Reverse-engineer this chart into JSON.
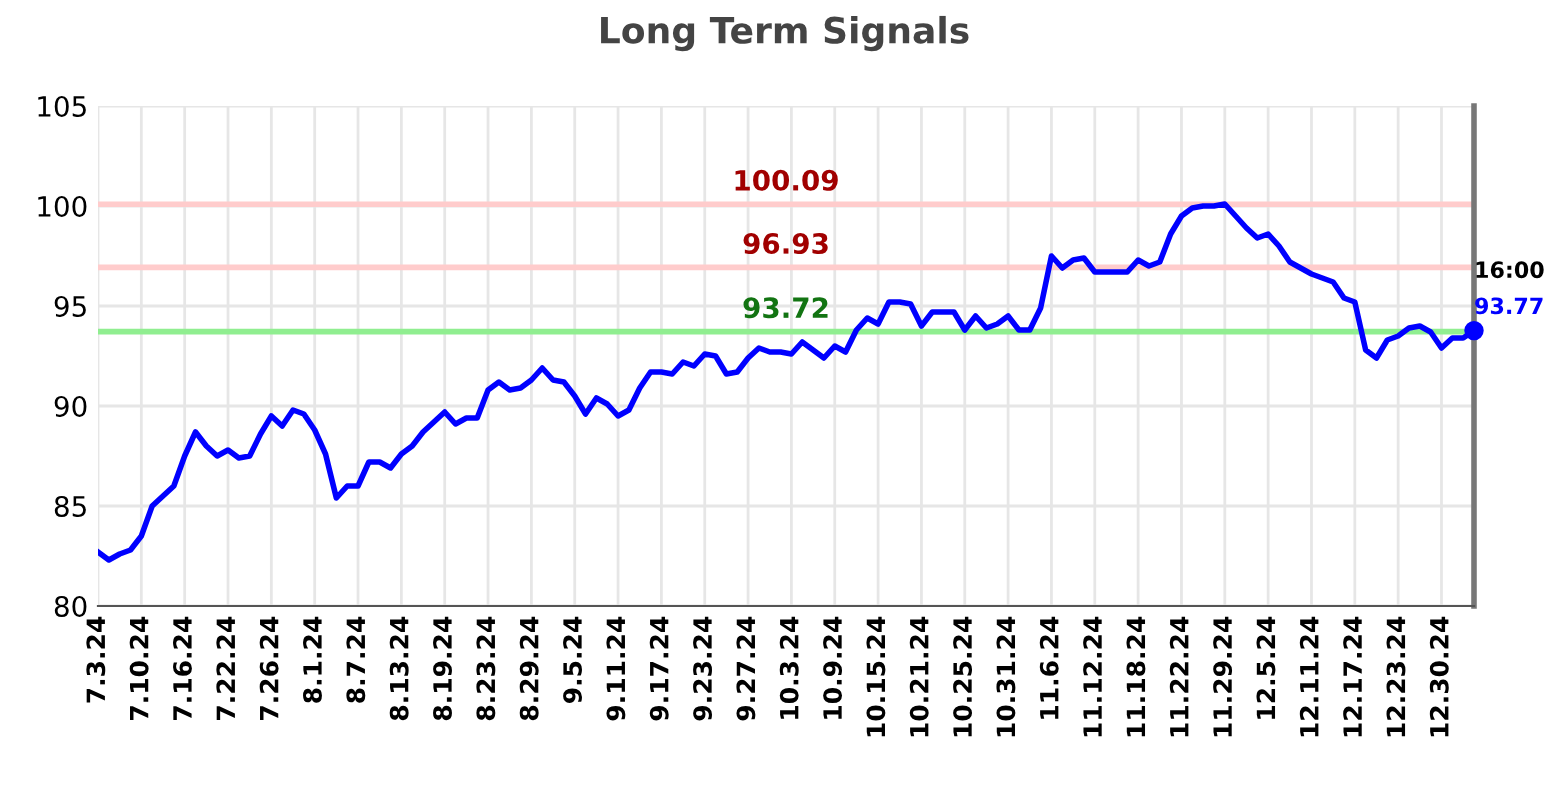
{
  "chart_data": {
    "type": "line",
    "title": "Long Term Signals",
    "categories": [
      "7.3.24",
      null,
      null,
      null,
      "7.10.24",
      null,
      null,
      null,
      "7.16.24",
      null,
      null,
      null,
      "7.22.24",
      null,
      null,
      null,
      "7.26.24",
      null,
      null,
      null,
      "8.1.24",
      null,
      null,
      null,
      "8.7.24",
      null,
      null,
      null,
      "8.13.24",
      null,
      null,
      null,
      "8.19.24",
      null,
      null,
      null,
      "8.23.24",
      null,
      null,
      null,
      "8.29.24",
      null,
      null,
      null,
      "9.5.24",
      null,
      null,
      null,
      "9.11.24",
      null,
      null,
      null,
      "9.17.24",
      null,
      null,
      null,
      "9.23.24",
      null,
      null,
      null,
      "9.27.24",
      null,
      null,
      null,
      "10.3.24",
      null,
      null,
      null,
      "10.9.24",
      null,
      null,
      null,
      "10.15.24",
      null,
      null,
      null,
      "10.21.24",
      null,
      null,
      null,
      "10.25.24",
      null,
      null,
      null,
      "10.31.24",
      null,
      null,
      null,
      "11.6.24",
      null,
      null,
      null,
      "11.12.24",
      null,
      null,
      null,
      "11.18.24",
      null,
      null,
      null,
      "11.22.24",
      null,
      null,
      null,
      "11.29.24",
      null,
      null,
      null,
      "12.5.24",
      null,
      null,
      null,
      "12.11.24",
      null,
      null,
      null,
      "12.17.24",
      null,
      null,
      null,
      "12.23.24",
      null,
      null,
      null,
      "12.30.24",
      null,
      null,
      null
    ],
    "series": [
      {
        "color": "#0000ff",
        "values": [
          82.7,
          82.3,
          82.6,
          82.8,
          83.5,
          85.0,
          85.5,
          86.0,
          87.5,
          88.7,
          88.0,
          87.5,
          87.8,
          87.4,
          87.5,
          88.6,
          89.5,
          89.0,
          89.8,
          89.6,
          88.8,
          87.6,
          85.4,
          86.0,
          86.0,
          87.2,
          87.2,
          86.9,
          87.6,
          88.0,
          88.7,
          89.2,
          89.7,
          89.1,
          89.4,
          89.4,
          90.8,
          91.2,
          90.8,
          90.9,
          91.3,
          91.9,
          91.3,
          91.2,
          90.5,
          89.6,
          90.4,
          90.1,
          89.5,
          89.8,
          90.9,
          91.7,
          91.7,
          91.6,
          92.2,
          92.0,
          92.6,
          92.5,
          91.6,
          91.7,
          92.4,
          92.9,
          92.7,
          92.7,
          92.6,
          93.2,
          92.8,
          92.4,
          93.0,
          92.7,
          93.8,
          94.4,
          94.1,
          95.2,
          95.2,
          95.1,
          94.0,
          94.7,
          94.7,
          94.7,
          93.8,
          94.5,
          93.9,
          94.1,
          94.5,
          93.8,
          93.8,
          94.9,
          97.5,
          96.9,
          97.3,
          97.4,
          96.7,
          96.7,
          96.7,
          96.7,
          97.3,
          97.0,
          97.2,
          98.6,
          99.5,
          99.9,
          100.0,
          100.0,
          100.1,
          99.5,
          98.9,
          98.4,
          98.6,
          98.0,
          97.2,
          96.9,
          96.6,
          96.4,
          96.2,
          95.4,
          95.2,
          92.8,
          92.4,
          93.3,
          93.5,
          93.9,
          94.0,
          93.7,
          92.9,
          93.4,
          93.4,
          93.77
        ]
      }
    ],
    "ylim": [
      80,
      105
    ],
    "yticks": [
      80,
      85,
      90,
      95,
      100,
      105
    ],
    "grid": true,
    "tick_labels": "xy",
    "ref_lines": [
      {
        "axis": "y",
        "value": 100.09,
        "label": "100.09",
        "color": "#ffcccc"
      },
      {
        "axis": "y",
        "value": 96.93,
        "label": "96.93",
        "color": "#ffcccc"
      },
      {
        "axis": "y",
        "value": 93.72,
        "label": "93.72",
        "color": "#90ee90"
      }
    ],
    "annotations": [
      "16:00",
      "93.77"
    ]
  }
}
